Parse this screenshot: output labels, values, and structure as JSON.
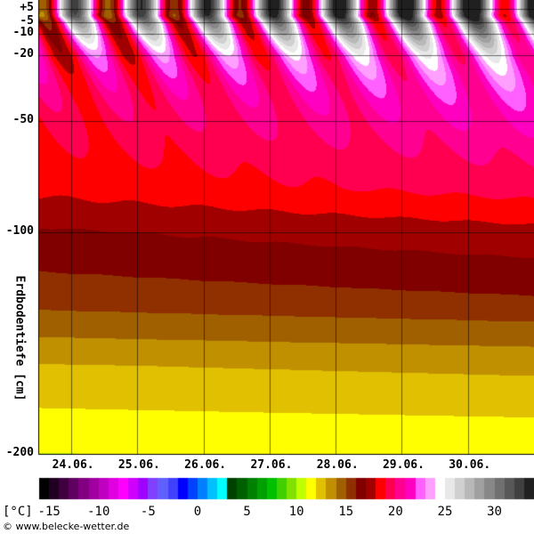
{
  "chart_data": {
    "type": "heatmap",
    "title": "",
    "ylabel": "Erdbodentiefe [cm]",
    "y_axis_direction": "depth increases downward; +5 cm is above ground",
    "y_ticks": [
      "+5",
      "-5",
      "-10",
      "-20",
      "-50",
      "-100",
      "-200"
    ],
    "y_tick_values": [
      5,
      -5,
      -10,
      -20,
      -50,
      -100,
      -200
    ],
    "ylim": [
      5,
      -200
    ],
    "x_labels": [
      "24.06.",
      "25.06.",
      "26.06.",
      "27.06.",
      "28.06.",
      "29.06.",
      "30.06."
    ],
    "grid": true,
    "colorbar": {
      "unit_label": "[°C]",
      "tick_labels": [
        "-15",
        "-10",
        "-5",
        "0",
        "5",
        "10",
        "15",
        "20",
        "25",
        "30"
      ],
      "tick_values": [
        -15,
        -10,
        -5,
        0,
        5,
        10,
        15,
        20,
        25,
        30
      ],
      "range": [
        -16,
        34
      ]
    },
    "depth_profile_mean_c": [
      {
        "depth_cm": 5,
        "temp_c": 24
      },
      {
        "depth_cm": -5,
        "temp_c": 23
      },
      {
        "depth_cm": -10,
        "temp_c": 22
      },
      {
        "depth_cm": -20,
        "temp_c": 20.5
      },
      {
        "depth_cm": -50,
        "temp_c": 19.5
      },
      {
        "depth_cm": -80,
        "temp_c": 18.5
      },
      {
        "depth_cm": -100,
        "temp_c": 17
      },
      {
        "depth_cm": -130,
        "temp_c": 15.5
      },
      {
        "depth_cm": -160,
        "temp_c": 13
      },
      {
        "depth_cm": -200,
        "temp_c": 11
      }
    ]
  },
  "credit": "© www.belecke-wetter.de"
}
